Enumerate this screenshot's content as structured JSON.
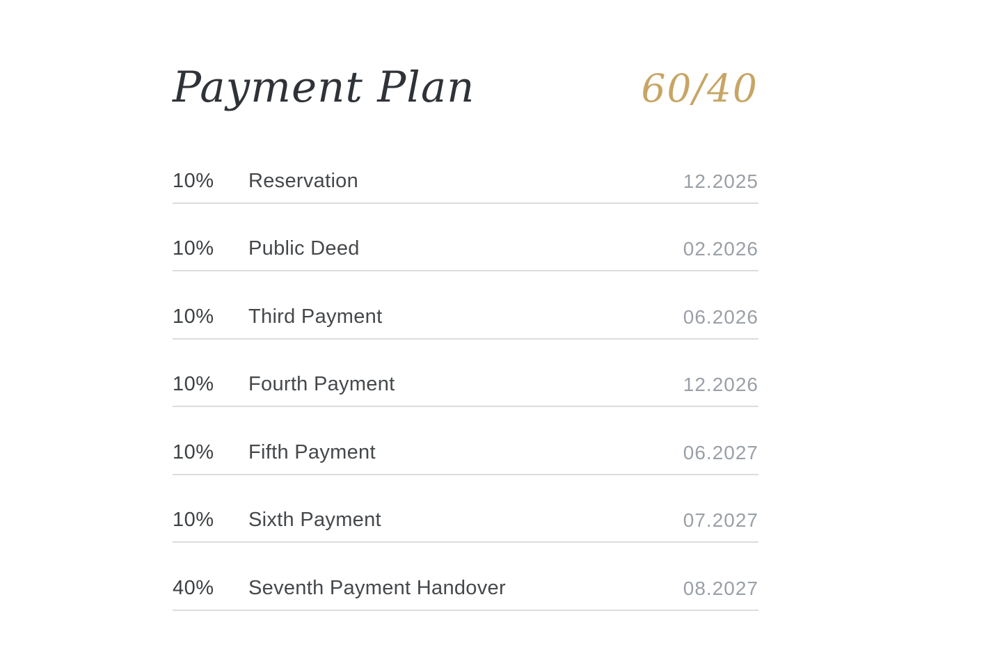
{
  "page": {
    "title": "Payment Plan",
    "ratio_label": "60/40"
  },
  "colors": {
    "background": "#ffffff",
    "title": "#2f3337",
    "accent_gold": "#c7a565",
    "percent_text": "#3c4043",
    "label_text": "#45484b",
    "date_text": "#9aa0a6",
    "divider": "#dcdcdc"
  },
  "rows": [
    {
      "percent": "10%",
      "label": "Reservation",
      "date": "12.2025"
    },
    {
      "percent": "10%",
      "label": "Public Deed",
      "date": "02.2026"
    },
    {
      "percent": "10%",
      "label": "Third Payment",
      "date": "06.2026"
    },
    {
      "percent": "10%",
      "label": "Fourth Payment",
      "date": "12.2026"
    },
    {
      "percent": "10%",
      "label": "Fifth Payment",
      "date": "06.2027"
    },
    {
      "percent": "10%",
      "label": "Sixth Payment",
      "date": "07.2027"
    },
    {
      "percent": "40%",
      "label": "Seventh Payment Handover",
      "date": "08.2027"
    }
  ]
}
